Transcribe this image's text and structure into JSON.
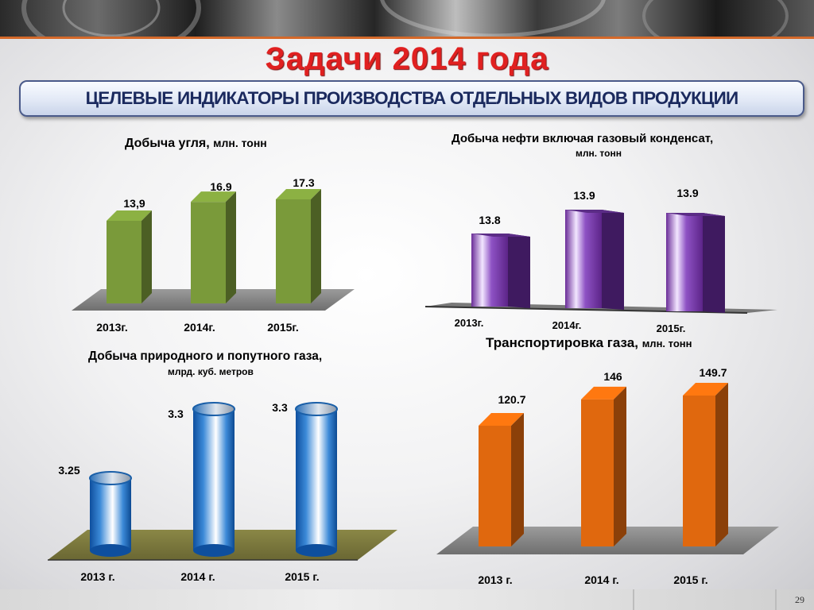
{
  "page": {
    "title": "Задачи 2014 года",
    "subtitle": "ЦЕЛЕВЫЕ ИНДИКАТОРЫ ПРОИЗВОДСТВА ОТДЕЛЬНЫХ ВИДОВ ПРОДУКЦИИ",
    "page_number": "29"
  },
  "chart_data": [
    {
      "id": "coal",
      "type": "bar",
      "title": "Добыча угля,",
      "unit": "млн. тонн",
      "categories": [
        "2013г.",
        "2014г.",
        "2015г."
      ],
      "values": [
        13.9,
        16.9,
        17.3
      ],
      "value_labels": [
        "13,9",
        "16.9",
        "17.3"
      ],
      "color": "#7a9a3a",
      "style": "3d-box"
    },
    {
      "id": "oil",
      "type": "bar",
      "title": "Добыча нефти включая газовый конденсат,",
      "unit": "млн. тонн",
      "categories": [
        "2013г.",
        "2014г.",
        "2015г."
      ],
      "values": [
        13.8,
        13.9,
        13.9
      ],
      "value_labels": [
        "13.8",
        "13.9",
        "13.9"
      ],
      "color": "#7b3fa8",
      "style": "3d-box-gloss"
    },
    {
      "id": "gas",
      "type": "bar",
      "title": "Добыча природного и попутного газа,",
      "unit": "млрд. куб. метров",
      "categories": [
        "2013 г.",
        "2014 г.",
        "2015 г."
      ],
      "values": [
        3.25,
        3.3,
        3.3
      ],
      "value_labels": [
        "3.25",
        "3.3",
        "3.3"
      ],
      "color": "#1f6fc0",
      "style": "cylinder"
    },
    {
      "id": "transport",
      "type": "bar",
      "title": "Транспортировка газа,",
      "unit": "млн. тонн",
      "categories": [
        "2013 г.",
        "2014 г.",
        "2015 г."
      ],
      "values": [
        120.7,
        146,
        149.7
      ],
      "value_labels": [
        "120.7",
        "146",
        "149.7"
      ],
      "color": "#e0680e",
      "style": "3d-box"
    }
  ]
}
